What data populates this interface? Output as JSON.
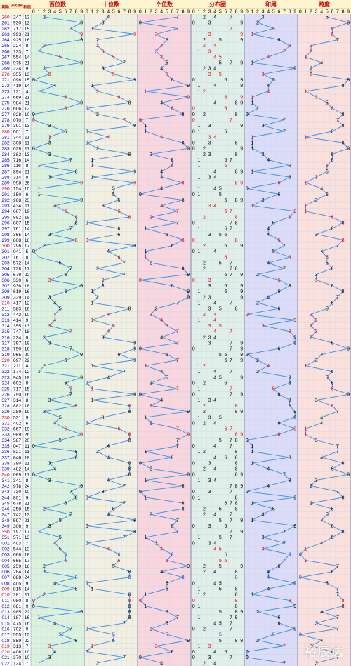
{
  "chart_data": {
    "type": "table",
    "title": "",
    "header": {
      "col_period": "期数",
      "col_number": "开奖号码",
      "col_sum": "和值",
      "sections": [
        "百位数",
        "十位数",
        "个位数",
        "分布图",
        "和尾",
        "跨度"
      ],
      "digit_labels": [
        "0",
        "1",
        "2",
        "3",
        "4",
        "5",
        "6",
        "7",
        "8",
        "9"
      ]
    },
    "rows": [
      {
        "p": "260",
        "n": "247",
        "s": "13"
      },
      {
        "p": "261",
        "n": "930",
        "s": "12"
      },
      {
        "p": "262",
        "n": "717",
        "s": "15"
      },
      {
        "p": "263",
        "n": "993",
        "s": "21"
      },
      {
        "p": "264",
        "n": "925",
        "s": "16"
      },
      {
        "p": "265",
        "n": "224",
        "s": "8"
      },
      {
        "p": "266",
        "n": "133",
        "s": "7"
      },
      {
        "p": "267",
        "n": "554",
        "s": "14"
      },
      {
        "p": "268",
        "n": "975",
        "s": "21"
      },
      {
        "p": "269",
        "n": "234",
        "s": "9"
      },
      {
        "p": "270",
        "n": "355",
        "s": "13"
      },
      {
        "p": "271",
        "n": "096",
        "s": "15"
      },
      {
        "p": "272",
        "n": "419",
        "s": "14"
      },
      {
        "p": "273",
        "n": "121",
        "s": "4"
      },
      {
        "p": "274",
        "n": "669",
        "s": "21"
      },
      {
        "p": "275",
        "n": "984",
        "s": "21"
      },
      {
        "p": "276",
        "n": "606",
        "s": "12"
      },
      {
        "p": "277",
        "n": "028",
        "s": "10"
      },
      {
        "p": "278",
        "n": "070",
        "s": "7"
      },
      {
        "p": "279",
        "n": "391",
        "s": "13"
      },
      {
        "p": "280",
        "n": "601",
        "s": "7"
      },
      {
        "p": "281",
        "n": "344",
        "s": "11"
      },
      {
        "p": "282",
        "n": "308",
        "s": "11"
      },
      {
        "p": "283",
        "n": "029",
        "s": "11"
      },
      {
        "p": "284",
        "n": "382",
        "s": "13"
      },
      {
        "p": "285",
        "n": "716",
        "s": "14"
      },
      {
        "p": "286",
        "n": "116",
        "s": "8"
      },
      {
        "p": "287",
        "n": "894",
        "s": "21"
      },
      {
        "p": "288",
        "n": "314",
        "s": "8"
      },
      {
        "p": "289",
        "n": "998",
        "s": "26"
      },
      {
        "p": "290",
        "n": "154",
        "s": "10"
      },
      {
        "p": "291",
        "n": "150",
        "s": "6"
      },
      {
        "p": "292",
        "n": "968",
        "s": "23"
      },
      {
        "p": "293",
        "n": "434",
        "s": "11"
      },
      {
        "p": "294",
        "n": "667",
        "s": "19"
      },
      {
        "p": "295",
        "n": "882",
        "s": "18"
      },
      {
        "p": "296",
        "n": "807",
        "s": "15"
      },
      {
        "p": "297",
        "n": "761",
        "s": "14"
      },
      {
        "p": "298",
        "n": "365",
        "s": "14"
      },
      {
        "p": "299",
        "n": "808",
        "s": "16"
      },
      {
        "p": "300",
        "n": "296",
        "s": "17"
      },
      {
        "p": "301",
        "n": "041",
        "s": "5"
      },
      {
        "p": "302",
        "n": "161",
        "s": "8"
      },
      {
        "p": "303",
        "n": "572",
        "s": "14"
      },
      {
        "p": "304",
        "n": "728",
        "s": "17"
      },
      {
        "p": "305",
        "n": "679",
        "s": "22"
      },
      {
        "p": "306",
        "n": "330",
        "s": "6"
      },
      {
        "p": "307",
        "n": "936",
        "s": "18"
      },
      {
        "p": "308",
        "n": "619",
        "s": "16"
      },
      {
        "p": "309",
        "n": "329",
        "s": "14"
      },
      {
        "p": "310",
        "n": "417",
        "s": "12"
      },
      {
        "p": "311",
        "n": "583",
        "s": "16"
      },
      {
        "p": "312",
        "n": "442",
        "s": "10"
      },
      {
        "p": "313",
        "n": "414",
        "s": "9"
      },
      {
        "p": "314",
        "n": "355",
        "s": "13"
      },
      {
        "p": "315",
        "n": "747",
        "s": "18"
      },
      {
        "p": "316",
        "n": "234",
        "s": "9"
      },
      {
        "p": "317",
        "n": "397",
        "s": "19"
      },
      {
        "p": "318",
        "n": "790",
        "s": "16"
      },
      {
        "p": "319",
        "n": "965",
        "s": "20"
      },
      {
        "p": "320",
        "n": "697",
        "s": "22"
      },
      {
        "p": "321",
        "n": "211",
        "s": "4"
      },
      {
        "p": "322",
        "n": "174",
        "s": "12"
      },
      {
        "p": "323",
        "n": "945",
        "s": "18"
      },
      {
        "p": "324",
        "n": "602",
        "s": "8"
      },
      {
        "p": "325",
        "n": "717",
        "s": "15"
      },
      {
        "p": "326",
        "n": "790",
        "s": "16"
      },
      {
        "p": "327",
        "n": "314",
        "s": "8"
      },
      {
        "p": "328",
        "n": "882",
        "s": "18"
      },
      {
        "p": "329",
        "n": "289",
        "s": "19"
      },
      {
        "p": "330",
        "n": "531",
        "s": "9"
      },
      {
        "p": "331",
        "n": "402",
        "s": "6"
      },
      {
        "p": "332",
        "n": "667",
        "s": "19"
      },
      {
        "p": "333",
        "n": "989",
        "s": "26"
      },
      {
        "p": "334",
        "n": "587",
        "s": "20"
      },
      {
        "p": "335",
        "n": "047",
        "s": "11"
      },
      {
        "p": "336",
        "n": "821",
        "s": "11"
      },
      {
        "p": "337",
        "n": "846",
        "s": "18"
      },
      {
        "p": "338",
        "n": "380",
        "s": "11"
      },
      {
        "p": "339",
        "n": "482",
        "s": "14"
      },
      {
        "p": "340",
        "n": "089",
        "s": "17"
      },
      {
        "p": "341",
        "n": "341",
        "s": "8"
      },
      {
        "p": "342",
        "n": "978",
        "s": "24"
      },
      {
        "p": "343",
        "n": "730",
        "s": "10"
      },
      {
        "p": "344",
        "n": "801",
        "s": "9"
      },
      {
        "p": "345",
        "n": "678",
        "s": "21"
      },
      {
        "p": "346",
        "n": "258",
        "s": "15"
      },
      {
        "p": "347",
        "n": "742",
        "s": "13"
      },
      {
        "p": "348",
        "n": "597",
        "s": "21"
      },
      {
        "p": "349",
        "n": "306",
        "s": "9"
      },
      {
        "p": "350",
        "n": "197",
        "s": "17"
      },
      {
        "p": "351",
        "n": "571",
        "s": "13"
      },
      {
        "p": "001",
        "n": "403",
        "s": "7"
      },
      {
        "p": "002",
        "n": "544",
        "s": "13"
      },
      {
        "p": "003",
        "n": "666",
        "s": "18"
      },
      {
        "p": "004",
        "n": "665",
        "s": "17"
      },
      {
        "p": "005",
        "n": "259",
        "s": "16"
      },
      {
        "p": "006",
        "n": "284",
        "s": "14"
      },
      {
        "p": "007",
        "n": "888",
        "s": "24"
      },
      {
        "p": "008",
        "n": "405",
        "s": "9"
      },
      {
        "p": "009",
        "n": "815",
        "s": "14"
      },
      {
        "p": "010",
        "n": "281",
        "s": "11"
      },
      {
        "p": "011",
        "n": "080",
        "s": "8"
      },
      {
        "p": "012",
        "n": "081",
        "s": "9"
      },
      {
        "p": "013",
        "n": "985",
        "s": "22"
      },
      {
        "p": "014",
        "n": "187",
        "s": "16"
      },
      {
        "p": "015",
        "n": "475",
        "s": "16"
      },
      {
        "p": "016",
        "n": "702",
        "s": "9"
      },
      {
        "p": "017",
        "n": "555",
        "s": "15"
      },
      {
        "p": "018",
        "n": "859",
        "s": "22"
      },
      {
        "p": "019",
        "n": "313",
        "s": "7"
      },
      {
        "p": "020",
        "n": "406",
        "s": "10"
      },
      {
        "p": "021",
        "n": "370",
        "s": "10"
      },
      {
        "p": "022",
        "n": "124",
        "s": "7"
      }
    ]
  },
  "watermark": "裕辰达",
  "colors": {
    "section_bg": [
      "#ddf2dd",
      "#f3f0e2",
      "#f9d6de",
      "#e0efe7",
      "#dcdcf8",
      "#fbe0dc"
    ],
    "header_bg": "#fff6d0",
    "header_text": "#cc0000",
    "period_blue": "#0000cc",
    "period_red": "#cc0000",
    "line": "#3a8ee6",
    "hot_red": "#e60000",
    "repeat_blue": "#1a3ccc",
    "grid": "#c8d6e8",
    "text": "#000000"
  }
}
